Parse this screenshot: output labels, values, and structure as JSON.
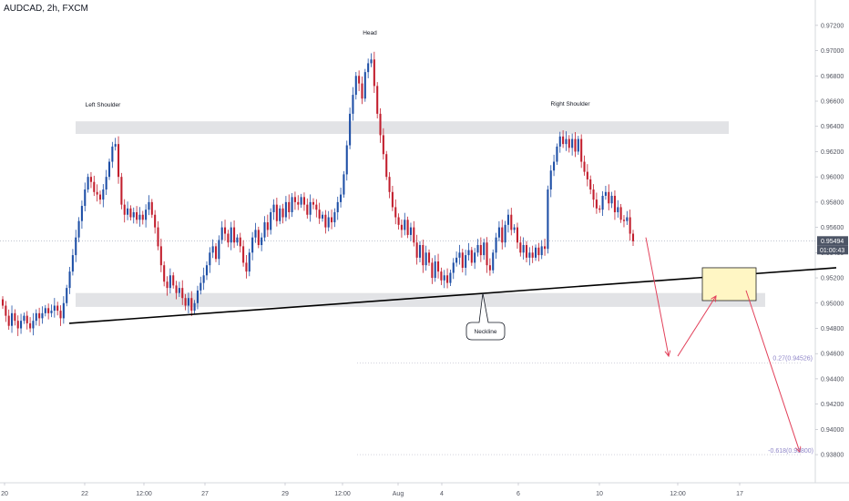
{
  "header": {
    "symbol_title": "AUDCAD, 2h, FXCM"
  },
  "price_badge": {
    "value": "0.95494",
    "countdown": "01:00:43"
  },
  "colors": {
    "up": "#1e4fa6",
    "down": "#c21f2e",
    "neckline": "#000000",
    "zone": "#e2e3e6",
    "target_box": "#fff6c4",
    "projection_arrow": "#e2405a",
    "fib_label": "#8f86c8",
    "axis_text": "#50535e"
  },
  "annotations": {
    "left_shoulder": "Left Shoulder",
    "head": "Head",
    "right_shoulder": "Right Shoulder",
    "neckline": "Neckline",
    "fib_027": "0.27(0.94526)",
    "fib_minus0618": "-0.618(0.93800)"
  },
  "chart_data": {
    "type": "candlestick",
    "title": "AUDCAD, 2h, FXCM",
    "symbol": "AUDCAD",
    "timeframe": "2h",
    "source": "FXCM",
    "ylim": [
      0.9375,
      0.973
    ],
    "y_ticks": [
      "0.97200",
      "0.97000",
      "0.96800",
      "0.96600",
      "0.96400",
      "0.96200",
      "0.96000",
      "0.95800",
      "0.95600",
      "0.95400",
      "0.95200",
      "0.95000",
      "0.94800",
      "0.94600",
      "0.94400",
      "0.94200",
      "0.94000",
      "0.93800"
    ],
    "x_ticks": [
      "20",
      "22",
      "12:00",
      "27",
      "29",
      "12:00",
      "Aug",
      "4",
      "6",
      "10",
      "12:00",
      "17"
    ],
    "last_price": 0.95494,
    "neckline": {
      "start": 0.9484,
      "end": 0.9528
    },
    "shoulder_zone": [
      0.9634,
      0.9644
    ],
    "neckline_zone": [
      0.9497,
      0.9508
    ],
    "target_box": [
      0.9502,
      0.9528
    ],
    "fib_levels": [
      0.94526,
      0.938
    ],
    "projection_path": [
      0.9552,
      0.9458,
      0.951,
      0.9382
    ],
    "key_points": {
      "left_shoulder_high": 0.9641,
      "head_high": 0.9698,
      "right_shoulder_high": 0.964
    },
    "closes": [
      0.9498,
      0.949,
      0.9482,
      0.9492,
      0.9486,
      0.948,
      0.9486,
      0.949,
      0.9484,
      0.948,
      0.9486,
      0.9492,
      0.9488,
      0.9492,
      0.9496,
      0.9492,
      0.9494,
      0.9498,
      0.9494,
      0.9488,
      0.95,
      0.9512,
      0.9525,
      0.9538,
      0.9552,
      0.9565,
      0.9577,
      0.959,
      0.96,
      0.9596,
      0.9588,
      0.9586,
      0.9582,
      0.959,
      0.96,
      0.9612,
      0.9624,
      0.9626,
      0.96,
      0.9578,
      0.957,
      0.9575,
      0.9568,
      0.9572,
      0.9566,
      0.957,
      0.9566,
      0.9574,
      0.958,
      0.957,
      0.956,
      0.9545,
      0.953,
      0.9517,
      0.9512,
      0.9522,
      0.9514,
      0.9508,
      0.9512,
      0.9504,
      0.9498,
      0.9504,
      0.9494,
      0.95,
      0.951,
      0.9516,
      0.9522,
      0.953,
      0.954,
      0.9545,
      0.9535,
      0.955,
      0.956,
      0.9555,
      0.9548,
      0.956,
      0.9548,
      0.9552,
      0.9545,
      0.9532,
      0.9525,
      0.954,
      0.9552,
      0.9558,
      0.9546,
      0.9552,
      0.9564,
      0.9558,
      0.9572,
      0.9578,
      0.9565,
      0.9575,
      0.9568,
      0.958,
      0.9572,
      0.9584,
      0.958,
      0.9578,
      0.9584,
      0.9578,
      0.957,
      0.958,
      0.9578,
      0.9574,
      0.9567,
      0.957,
      0.956,
      0.9568,
      0.9564,
      0.9572,
      0.958,
      0.9586,
      0.9602,
      0.9625,
      0.965,
      0.9665,
      0.968,
      0.9674,
      0.9662,
      0.9683,
      0.969,
      0.9693,
      0.9672,
      0.965,
      0.9633,
      0.9618,
      0.96,
      0.9588,
      0.9576,
      0.9568,
      0.9562,
      0.9558,
      0.9566,
      0.9554,
      0.956,
      0.9548,
      0.9536,
      0.9546,
      0.953,
      0.954,
      0.9532,
      0.952,
      0.9533,
      0.9525,
      0.9518,
      0.9522,
      0.9516,
      0.9524,
      0.9532,
      0.9536,
      0.954,
      0.9528,
      0.9538,
      0.9542,
      0.9532,
      0.954,
      0.9546,
      0.9538,
      0.9548,
      0.953,
      0.9526,
      0.954,
      0.9552,
      0.956,
      0.9548,
      0.9562,
      0.957,
      0.9558,
      0.956,
      0.9548,
      0.954,
      0.9546,
      0.9536,
      0.954,
      0.9536,
      0.9544,
      0.9538,
      0.9545,
      0.9543,
      0.959,
      0.9605,
      0.9612,
      0.9624,
      0.9632,
      0.9626,
      0.963,
      0.9623,
      0.963,
      0.962,
      0.963,
      0.9612,
      0.9604,
      0.9598,
      0.959,
      0.9582,
      0.9575,
      0.9574,
      0.9585,
      0.9588,
      0.9579,
      0.9585,
      0.9572,
      0.9576,
      0.9566,
      0.9565,
      0.9568,
      0.9555,
      0.9549
    ]
  }
}
